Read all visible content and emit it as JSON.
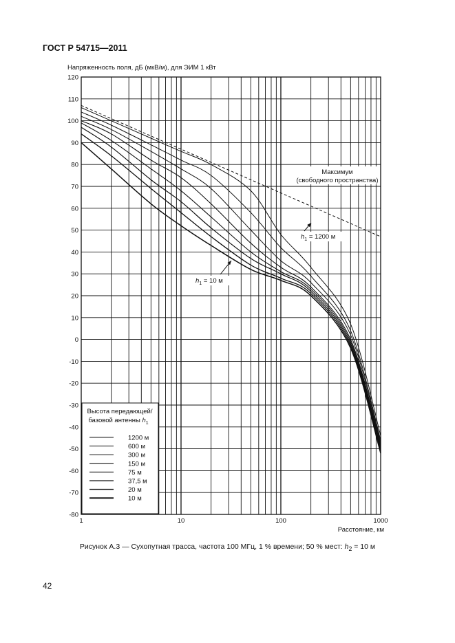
{
  "document": {
    "header": "ГОСТ Р 54715—2011",
    "page_number": "42",
    "caption_prefix": "Рисунок А.3 — Сухопутная трасса, частота 100 МГц, 1 % времени; 50 % мест: ",
    "caption_var": "h",
    "caption_sub": "2",
    "caption_suffix": " = 10 м"
  },
  "chart_data": {
    "type": "line",
    "ylabel": "Напряженность поля, дБ (мкВ/м), для ЭИМ 1 кВт",
    "xlabel": "Расстояние, км",
    "x_scale": "log",
    "xlim": [
      1,
      1000
    ],
    "ylim": [
      -80,
      120
    ],
    "grid": true,
    "x_ticks": [
      1,
      10,
      100,
      1000
    ],
    "x_tick_labels": [
      "1",
      "10",
      "100",
      "1000"
    ],
    "y_ticks": [
      120,
      110,
      100,
      90,
      80,
      70,
      60,
      50,
      40,
      30,
      20,
      10,
      0,
      -10,
      -20,
      -30,
      -40,
      -50,
      -60,
      -70,
      -80
    ],
    "y_tick_labels": [
      "120",
      "110",
      "100",
      "90",
      "80",
      "70",
      "60",
      "50",
      "40",
      "30",
      "20",
      "10",
      "0",
      "-10",
      "-20",
      "-30",
      "-40",
      "-50",
      "-60",
      "-70",
      "-80"
    ],
    "max_curve": {
      "label_line1": "Максимум",
      "label_line2": "(свободного пространства)",
      "x": [
        1,
        1000
      ],
      "y": [
        107,
        47
      ]
    },
    "annotations": [
      {
        "id": "h1-1200",
        "var": "h",
        "sub": "1",
        "text": " = 1200 м"
      },
      {
        "id": "h1-10",
        "var": "h",
        "sub": "1",
        "text": " = 10 м"
      }
    ],
    "legend": {
      "placement": "bottom-left",
      "title_line1": "Высота передающей/",
      "title_line2": "базовой антенны ",
      "title_var": "h",
      "title_sub": "1",
      "entries": [
        "1200 м",
        "600 м",
        "300 м",
        "150 м",
        "75 м",
        "37,5 м",
        "20 м",
        "10 м"
      ]
    },
    "x": [
      1,
      2,
      5,
      10,
      20,
      50,
      100,
      200,
      500,
      1000
    ],
    "series": [
      {
        "name": "1200 м",
        "values": [
          106,
          100,
          92,
          86,
          80,
          68,
          48,
          33,
          7,
          -44
        ]
      },
      {
        "name": "600 м",
        "values": [
          104,
          98,
          89,
          82,
          75,
          58,
          42,
          29,
          4,
          -46
        ]
      },
      {
        "name": "300 м",
        "values": [
          102,
          96,
          86,
          78,
          69,
          50,
          36,
          26,
          2,
          -47
        ]
      },
      {
        "name": "150 м",
        "values": [
          100,
          94,
          82,
          74,
          62,
          44,
          33,
          24,
          0,
          -48
        ]
      },
      {
        "name": "75 м",
        "values": [
          99,
          91,
          78,
          68,
          56,
          40,
          31,
          23,
          -1,
          -49
        ]
      },
      {
        "name": "37,5 м",
        "values": [
          97,
          88,
          73,
          63,
          51,
          37,
          30,
          22,
          -2,
          -50
        ]
      },
      {
        "name": "20 м",
        "values": [
          94,
          84,
          69,
          58,
          47,
          34,
          28,
          21,
          -3,
          -51
        ]
      },
      {
        "name": "10 м",
        "values": [
          90,
          78,
          62,
          52,
          43,
          32,
          27,
          20,
          -4,
          -52
        ]
      }
    ]
  }
}
